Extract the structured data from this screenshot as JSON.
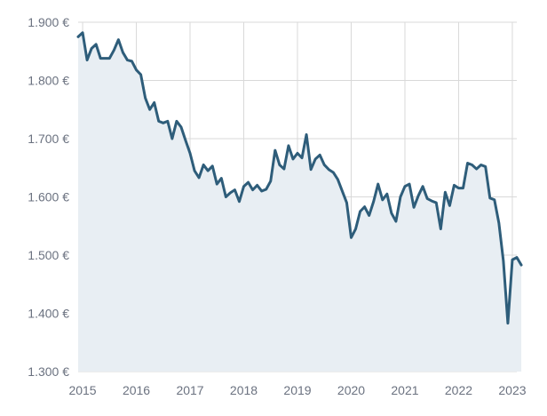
{
  "chart_data": {
    "type": "area",
    "title": "",
    "xlabel": "",
    "ylabel": "",
    "x_ticks": [
      "2015",
      "2016",
      "2017",
      "2018",
      "2019",
      "2020",
      "2021",
      "2022",
      "2023"
    ],
    "y_ticks": [
      "1.900 €",
      "1.800 €",
      "1.700 €",
      "1.600 €",
      "1.500 €",
      "1.400 €",
      "1.300 €"
    ],
    "xlim": [
      "2014-12",
      "2023-02"
    ],
    "ylim": [
      1300,
      1900
    ],
    "grid": true,
    "line_color": "#2e5d7a",
    "fill_color": "#e8eef3",
    "series": [
      {
        "values": [
          [
            "2014-12",
            1875
          ],
          [
            "2015-01",
            1882
          ],
          [
            "2015-02",
            1835
          ],
          [
            "2015-03",
            1855
          ],
          [
            "2015-04",
            1862
          ],
          [
            "2015-05",
            1838
          ],
          [
            "2015-06",
            1838
          ],
          [
            "2015-07",
            1838
          ],
          [
            "2015-08",
            1852
          ],
          [
            "2015-09",
            1870
          ],
          [
            "2015-10",
            1848
          ],
          [
            "2015-11",
            1835
          ],
          [
            "2015-12",
            1833
          ],
          [
            "2016-01",
            1818
          ],
          [
            "2016-02",
            1810
          ],
          [
            "2016-03",
            1770
          ],
          [
            "2016-04",
            1750
          ],
          [
            "2016-05",
            1762
          ],
          [
            "2016-06",
            1730
          ],
          [
            "2016-07",
            1727
          ],
          [
            "2016-08",
            1730
          ],
          [
            "2016-09",
            1700
          ],
          [
            "2016-10",
            1730
          ],
          [
            "2016-11",
            1720
          ],
          [
            "2016-12",
            1697
          ],
          [
            "2017-01",
            1675
          ],
          [
            "2017-02",
            1645
          ],
          [
            "2017-03",
            1633
          ],
          [
            "2017-04",
            1655
          ],
          [
            "2017-05",
            1645
          ],
          [
            "2017-06",
            1653
          ],
          [
            "2017-07",
            1622
          ],
          [
            "2017-08",
            1632
          ],
          [
            "2017-09",
            1600
          ],
          [
            "2017-10",
            1607
          ],
          [
            "2017-11",
            1612
          ],
          [
            "2017-12",
            1592
          ],
          [
            "2018-01",
            1618
          ],
          [
            "2018-02",
            1625
          ],
          [
            "2018-03",
            1612
          ],
          [
            "2018-04",
            1620
          ],
          [
            "2018-05",
            1610
          ],
          [
            "2018-06",
            1613
          ],
          [
            "2018-07",
            1627
          ],
          [
            "2018-08",
            1680
          ],
          [
            "2018-09",
            1655
          ],
          [
            "2018-10",
            1648
          ],
          [
            "2018-11",
            1688
          ],
          [
            "2018-12",
            1665
          ],
          [
            "2019-01",
            1675
          ],
          [
            "2019-02",
            1667
          ],
          [
            "2019-03",
            1707
          ],
          [
            "2019-04",
            1647
          ],
          [
            "2019-05",
            1665
          ],
          [
            "2019-06",
            1672
          ],
          [
            "2019-07",
            1655
          ],
          [
            "2019-08",
            1647
          ],
          [
            "2019-09",
            1642
          ],
          [
            "2019-10",
            1630
          ],
          [
            "2019-11",
            1610
          ],
          [
            "2019-12",
            1590
          ],
          [
            "2020-01",
            1530
          ],
          [
            "2020-02",
            1545
          ],
          [
            "2020-03",
            1575
          ],
          [
            "2020-04",
            1583
          ],
          [
            "2020-05",
            1568
          ],
          [
            "2020-06",
            1592
          ],
          [
            "2020-07",
            1622
          ],
          [
            "2020-08",
            1595
          ],
          [
            "2020-09",
            1605
          ],
          [
            "2020-10",
            1572
          ],
          [
            "2020-11",
            1558
          ],
          [
            "2020-12",
            1600
          ],
          [
            "2021-01",
            1618
          ],
          [
            "2021-02",
            1622
          ],
          [
            "2021-03",
            1582
          ],
          [
            "2021-04",
            1602
          ],
          [
            "2021-05",
            1618
          ],
          [
            "2021-06",
            1597
          ],
          [
            "2021-07",
            1593
          ],
          [
            "2021-08",
            1590
          ],
          [
            "2021-09",
            1545
          ],
          [
            "2021-10",
            1608
          ],
          [
            "2021-11",
            1585
          ],
          [
            "2021-12",
            1620
          ],
          [
            "2022-01",
            1615
          ],
          [
            "2022-02",
            1615
          ],
          [
            "2022-03",
            1658
          ],
          [
            "2022-04",
            1655
          ],
          [
            "2022-05",
            1648
          ],
          [
            "2022-06",
            1655
          ],
          [
            "2022-07",
            1652
          ],
          [
            "2022-08",
            1598
          ],
          [
            "2022-09",
            1595
          ],
          [
            "2022-10",
            1555
          ],
          [
            "2022-11",
            1490
          ],
          [
            "2022-12",
            1383
          ],
          [
            "2023-01",
            1492
          ],
          [
            "2023-02",
            1496
          ],
          [
            "2023-03",
            1483
          ]
        ]
      }
    ]
  }
}
